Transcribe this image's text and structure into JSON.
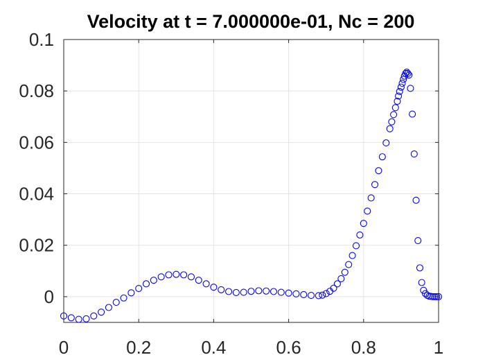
{
  "chart_data": {
    "type": "scatter",
    "title": "Velocity at t = 7.000000e-01, Nc = 200",
    "xlabel": "",
    "ylabel": "",
    "xlim": [
      0,
      1
    ],
    "ylim": [
      -0.01,
      0.1
    ],
    "xticks": [
      "0",
      "0.2",
      "0.4",
      "0.6",
      "0.8",
      "1"
    ],
    "xtick_values": [
      0,
      0.2,
      0.4,
      0.6,
      0.8,
      1
    ],
    "yticks": [
      "0",
      "0.02",
      "0.04",
      "0.06",
      "0.08",
      "0.1"
    ],
    "ytick_values": [
      0,
      0.02,
      0.04,
      0.06,
      0.08,
      0.1
    ],
    "grid": true,
    "marker": "open-circle",
    "color": "#0000ff",
    "points": [
      [
        0.0,
        -0.0075
      ],
      [
        0.02,
        -0.0082
      ],
      [
        0.04,
        -0.0088
      ],
      [
        0.06,
        -0.0086
      ],
      [
        0.08,
        -0.0075
      ],
      [
        0.1,
        -0.006
      ],
      [
        0.12,
        -0.0042
      ],
      [
        0.14,
        -0.0022
      ],
      [
        0.16,
        -0.0005
      ],
      [
        0.18,
        0.0015
      ],
      [
        0.2,
        0.0032
      ],
      [
        0.22,
        0.005
      ],
      [
        0.24,
        0.0064
      ],
      [
        0.26,
        0.0077
      ],
      [
        0.28,
        0.0085
      ],
      [
        0.3,
        0.0087
      ],
      [
        0.32,
        0.0085
      ],
      [
        0.34,
        0.0077
      ],
      [
        0.36,
        0.0064
      ],
      [
        0.38,
        0.005
      ],
      [
        0.4,
        0.0037
      ],
      [
        0.42,
        0.0027
      ],
      [
        0.44,
        0.002
      ],
      [
        0.46,
        0.0016
      ],
      [
        0.48,
        0.0017
      ],
      [
        0.5,
        0.0021
      ],
      [
        0.52,
        0.0023
      ],
      [
        0.54,
        0.0022
      ],
      [
        0.56,
        0.002
      ],
      [
        0.58,
        0.0017
      ],
      [
        0.6,
        0.0014
      ],
      [
        0.62,
        0.0011
      ],
      [
        0.64,
        0.0008
      ],
      [
        0.66,
        0.0005
      ],
      [
        0.68,
        0.0004
      ],
      [
        0.69,
        0.0006
      ],
      [
        0.7,
        0.0012
      ],
      [
        0.71,
        0.0021
      ],
      [
        0.72,
        0.0033
      ],
      [
        0.73,
        0.005
      ],
      [
        0.74,
        0.007
      ],
      [
        0.75,
        0.0095
      ],
      [
        0.76,
        0.0125
      ],
      [
        0.77,
        0.016
      ],
      [
        0.78,
        0.0198
      ],
      [
        0.79,
        0.024
      ],
      [
        0.8,
        0.0285
      ],
      [
        0.81,
        0.0333
      ],
      [
        0.82,
        0.0384
      ],
      [
        0.83,
        0.0436
      ],
      [
        0.84,
        0.049
      ],
      [
        0.85,
        0.0544
      ],
      [
        0.86,
        0.0598
      ],
      [
        0.87,
        0.0653
      ],
      [
        0.875,
        0.068
      ],
      [
        0.88,
        0.0708
      ],
      [
        0.885,
        0.0735
      ],
      [
        0.89,
        0.076
      ],
      [
        0.893,
        0.078
      ],
      [
        0.896,
        0.0798
      ],
      [
        0.9,
        0.0815
      ],
      [
        0.903,
        0.083
      ],
      [
        0.906,
        0.0845
      ],
      [
        0.909,
        0.0858
      ],
      [
        0.912,
        0.0868
      ],
      [
        0.915,
        0.0873
      ],
      [
        0.918,
        0.0868
      ],
      [
        0.921,
        0.0862
      ],
      [
        0.925,
        0.081
      ],
      [
        0.93,
        0.071
      ],
      [
        0.935,
        0.0555
      ],
      [
        0.94,
        0.0375
      ],
      [
        0.945,
        0.0218
      ],
      [
        0.95,
        0.0112
      ],
      [
        0.955,
        0.0055
      ],
      [
        0.96,
        0.0025
      ],
      [
        0.965,
        0.0012
      ],
      [
        0.97,
        0.0005
      ],
      [
        0.975,
        0.0002
      ],
      [
        0.98,
        0.0001
      ],
      [
        0.985,
        0.0
      ],
      [
        0.99,
        0.0
      ],
      [
        0.995,
        0.0
      ],
      [
        1.0,
        0.0
      ]
    ]
  }
}
